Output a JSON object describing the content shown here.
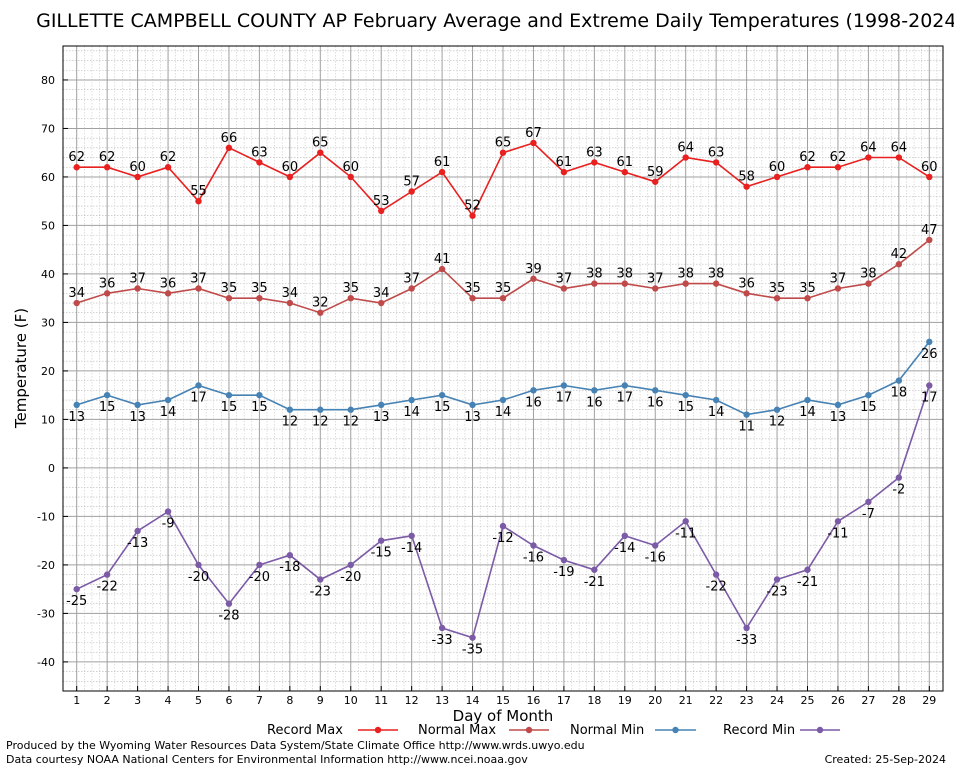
{
  "chart_data": {
    "type": "line",
    "title": "GILLETTE CAMPBELL COUNTY AP February Average and Extreme Daily Temperatures (1998-2024)",
    "xlabel": "Day of Month",
    "ylabel": "Temperature (F)",
    "ylim": [
      -46,
      87
    ],
    "yticks": [
      -40,
      -30,
      -20,
      -10,
      0,
      10,
      20,
      30,
      40,
      50,
      60,
      70,
      80
    ],
    "grid": true,
    "legend_position": "bottom",
    "x": [
      1,
      2,
      3,
      4,
      5,
      6,
      7,
      8,
      9,
      10,
      11,
      12,
      13,
      14,
      15,
      16,
      17,
      18,
      19,
      20,
      21,
      22,
      23,
      24,
      25,
      26,
      27,
      28,
      29
    ],
    "series": [
      {
        "name": "Record Max",
        "color": "#e8201f",
        "label_position": "above",
        "values": [
          62,
          62,
          60,
          62,
          55,
          66,
          63,
          60,
          65,
          60,
          53,
          57,
          61,
          52,
          65,
          67,
          61,
          63,
          61,
          59,
          64,
          63,
          58,
          60,
          62,
          62,
          64,
          64,
          60
        ]
      },
      {
        "name": "Normal Max",
        "color": "#c04a4a",
        "label_position": "above",
        "values": [
          34,
          36,
          37,
          36,
          37,
          35,
          35,
          34,
          32,
          35,
          34,
          37,
          41,
          35,
          35,
          39,
          37,
          38,
          38,
          37,
          38,
          38,
          36,
          35,
          35,
          37,
          38,
          42,
          47
        ]
      },
      {
        "name": "Normal Min",
        "color": "#4682b4",
        "label_position": "below",
        "values": [
          13,
          15,
          13,
          14,
          17,
          15,
          15,
          12,
          12,
          12,
          13,
          14,
          15,
          13,
          14,
          16,
          17,
          16,
          17,
          16,
          15,
          14,
          11,
          12,
          14,
          13,
          15,
          18,
          26
        ]
      },
      {
        "name": "Record Min",
        "color": "#7b5aa6",
        "label_position": "below",
        "values": [
          -25,
          -22,
          -13,
          -9,
          -20,
          -28,
          -20,
          -18,
          -23,
          -20,
          -15,
          -14,
          -33,
          -35,
          -12,
          -16,
          -19,
          -21,
          -14,
          -16,
          -11,
          -22,
          -33,
          -23,
          -21,
          -11,
          -7,
          -2,
          17
        ]
      }
    ]
  },
  "footer": {
    "producer": "Produced by the Wyoming Water Resources Data System/State Climate Office http://www.wrds.uwyo.edu",
    "courtesy": "Data courtesy NOAA National Centers for Environmental Information http://www.ncei.noaa.gov",
    "created": "Created:  25-Sep-2024"
  }
}
